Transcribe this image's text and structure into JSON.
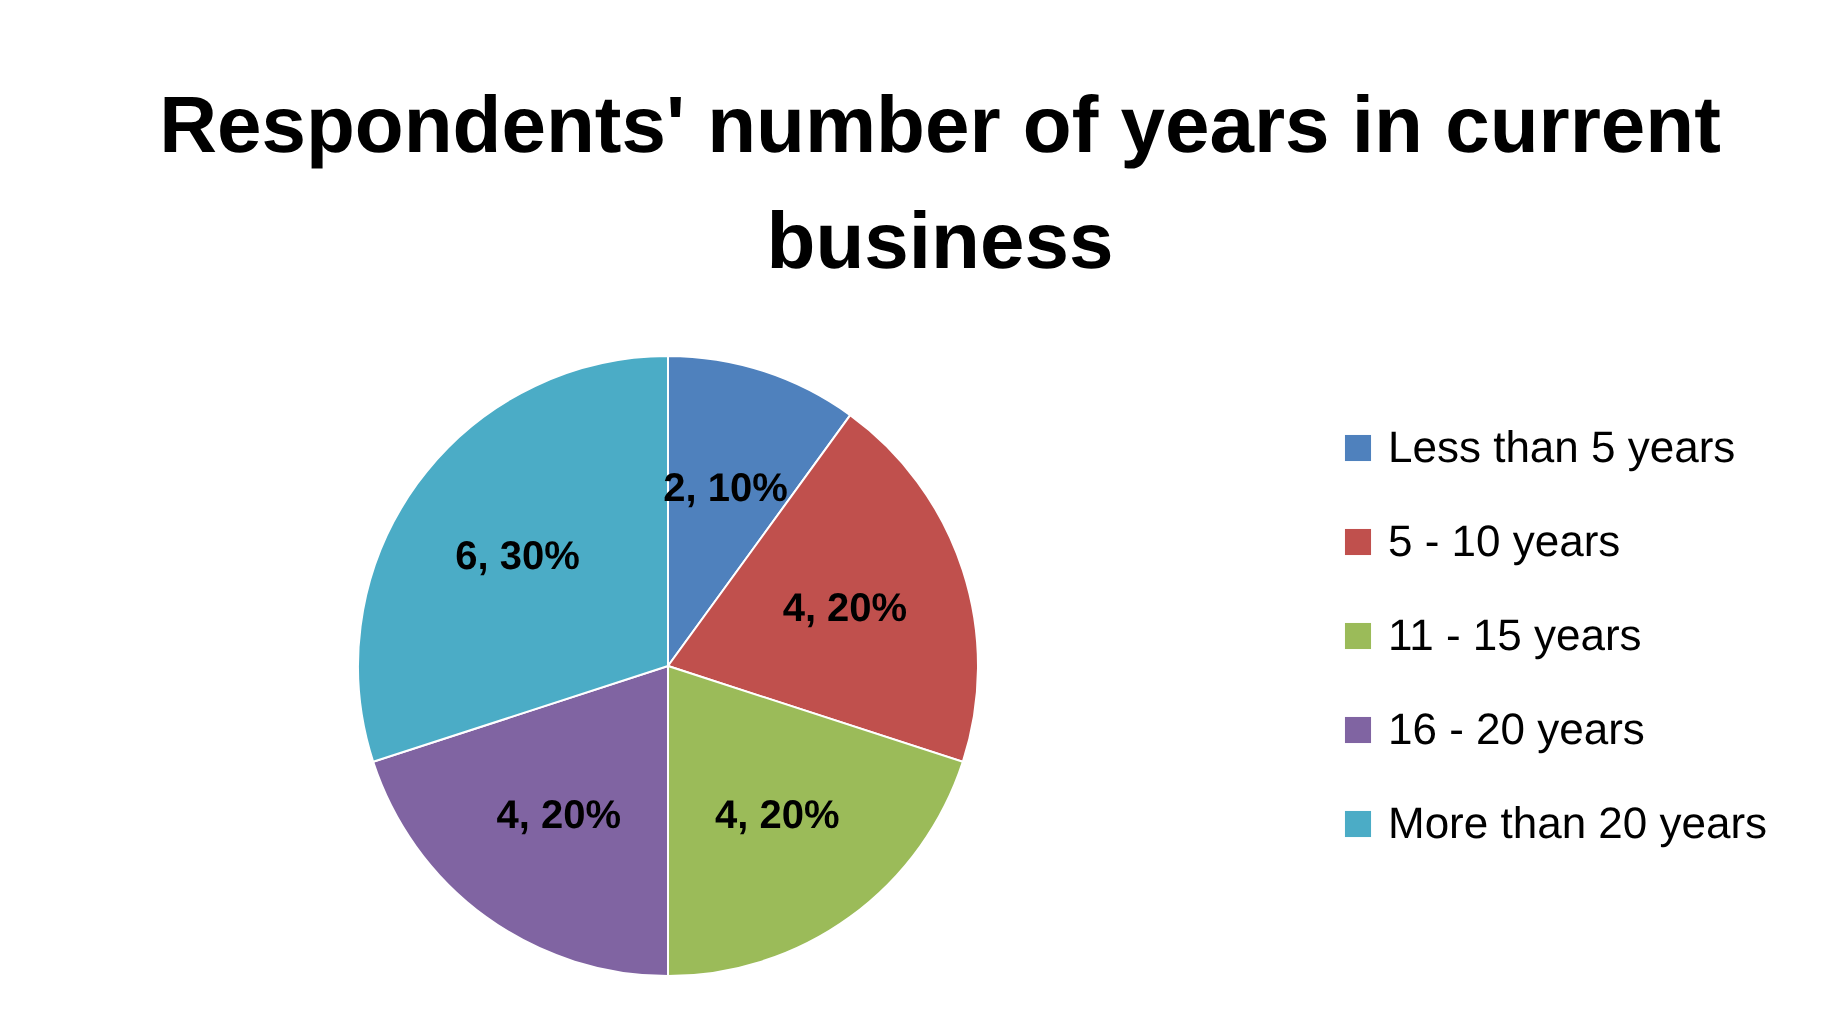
{
  "chart_data": {
    "type": "pie",
    "title": "Respondents' number of years in current business",
    "categories": [
      "Less than 5 years",
      "5 - 10 years",
      "11 - 15 years",
      "16 - 20 years",
      "More than 20 years"
    ],
    "values": [
      2,
      4,
      4,
      4,
      6
    ],
    "value_labels": [
      "2, 10%",
      "4, 20%",
      "4, 20%",
      "4, 20%",
      "6, 30%"
    ],
    "colors": [
      "#4f81bd",
      "#c0504d",
      "#9bbb59",
      "#8064a2",
      "#4bacc6"
    ],
    "legend": "right"
  }
}
